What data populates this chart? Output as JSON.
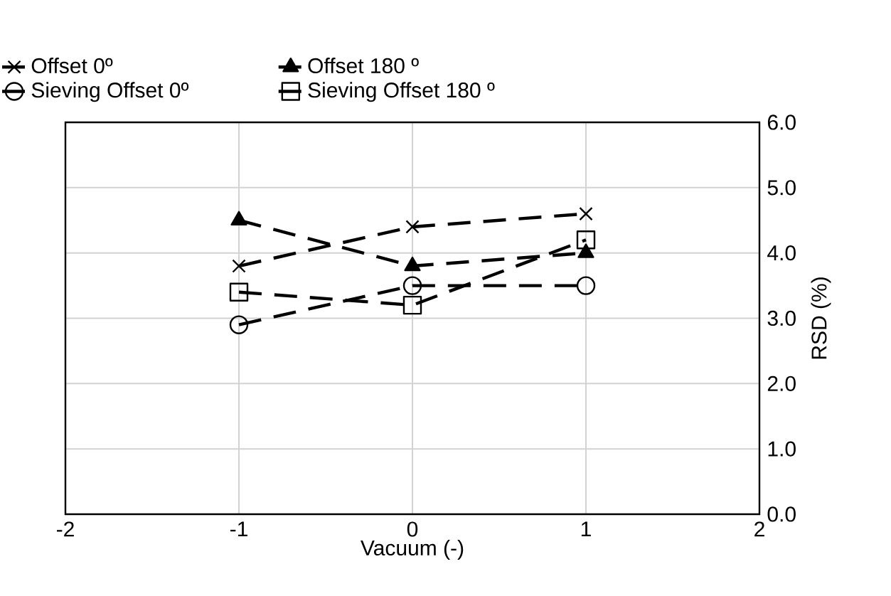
{
  "chart_data": {
    "type": "line",
    "xlabel": "Vacuum (-)",
    "ylabel": "RSD (%)",
    "x": [
      -1,
      0,
      1
    ],
    "series": [
      {
        "name": "Offset 0º",
        "color": "#000000",
        "marker": "cross",
        "values": [
          3.8,
          4.4,
          4.6
        ]
      },
      {
        "name": "Offset 180 º",
        "color": "#000000",
        "marker": "triangle",
        "values": [
          4.5,
          3.8,
          4.0
        ]
      },
      {
        "name": "Sieving Offset 0º",
        "color": "#000000",
        "marker": "circle",
        "values": [
          2.9,
          3.5,
          3.5
        ]
      },
      {
        "name": "Sieving Offset 180 º",
        "color": "#000000",
        "marker": "square",
        "values": [
          3.4,
          3.2,
          4.2
        ]
      }
    ],
    "xlim": [
      -2,
      2
    ],
    "xticks": [
      -2,
      -1,
      0,
      1,
      2
    ],
    "ylim": [
      0,
      6
    ],
    "yticks": [
      {
        "value": 0,
        "label": "0.0"
      },
      {
        "value": 1,
        "label": "1.0"
      },
      {
        "value": 2,
        "label": "2.0"
      },
      {
        "value": 3,
        "label": "3.0"
      },
      {
        "value": 4,
        "label": "4.0"
      },
      {
        "value": 5,
        "label": "5.0"
      },
      {
        "value": 6,
        "label": "6.0"
      }
    ],
    "grid": true,
    "legend": "top",
    "line_style": "dashed"
  }
}
